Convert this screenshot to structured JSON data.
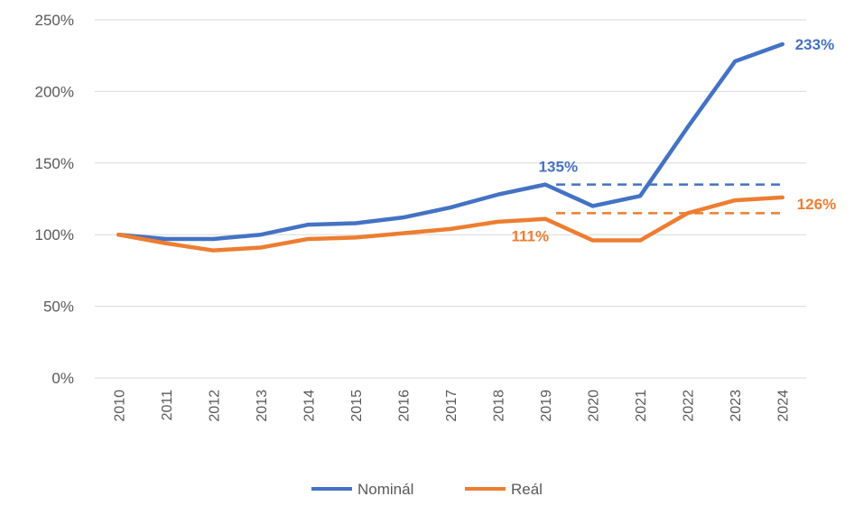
{
  "colors": {
    "nominal": "#4472c4",
    "real": "#ed7d31",
    "grid": "#d9d9d9",
    "axis_text": "#595959"
  },
  "chart_data": {
    "type": "line",
    "title": "",
    "xlabel": "",
    "ylabel": "",
    "x": [
      "2010",
      "2011",
      "2012",
      "2013",
      "2014",
      "2015",
      "2016",
      "2017",
      "2018",
      "2019",
      "2020",
      "2021",
      "2022",
      "2023",
      "2024"
    ],
    "ylim": [
      0,
      250
    ],
    "y_ticks": [
      {
        "value": 0,
        "label": "0%"
      },
      {
        "value": 50,
        "label": "50%"
      },
      {
        "value": 100,
        "label": "100%"
      },
      {
        "value": 150,
        "label": "150%"
      },
      {
        "value": 200,
        "label": "200%"
      },
      {
        "value": 250,
        "label": "250%"
      }
    ],
    "grid": "horizontal",
    "legend_position": "bottom",
    "series": [
      {
        "name": "Nominál",
        "color": "#4472c4",
        "values": [
          100,
          97,
          97,
          100,
          107,
          108,
          112,
          119,
          128,
          135,
          120,
          127,
          175,
          221,
          233
        ]
      },
      {
        "name": "Reál",
        "color": "#ed7d31",
        "values": [
          100,
          94,
          89,
          91,
          97,
          98,
          101,
          104,
          109,
          111,
          96,
          96,
          115,
          124,
          126
        ]
      }
    ],
    "reference_lines": [
      {
        "series": "Nominál",
        "value": 135,
        "from": "2019",
        "to": "2024",
        "style": "dashed"
      },
      {
        "series": "Reál",
        "value": 115,
        "from": "2019",
        "to": "2024",
        "style": "dashed"
      }
    ],
    "annotations": [
      {
        "text": "135%",
        "series": "Nominál",
        "at": "2019"
      },
      {
        "text": "111%",
        "series": "Reál",
        "at": "2019"
      },
      {
        "text": "233%",
        "series": "Nominál",
        "at": "2024"
      },
      {
        "text": "126%",
        "series": "Reál",
        "at": "2024"
      }
    ]
  }
}
